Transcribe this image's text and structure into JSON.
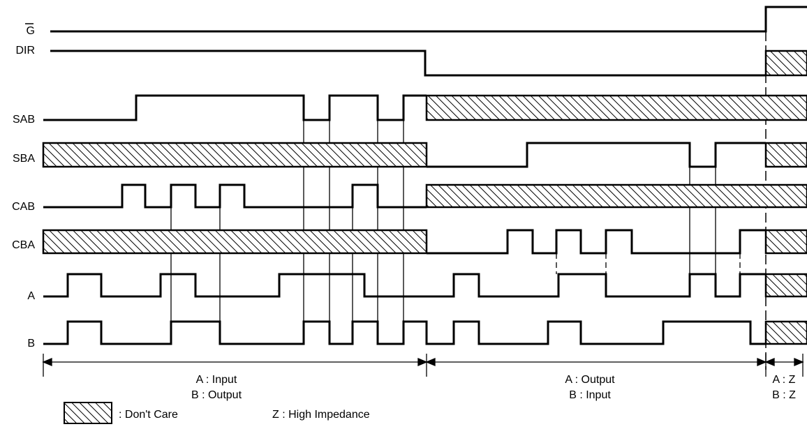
{
  "signals": [
    {
      "label": "G"
    },
    {
      "label": "DIR"
    },
    {
      "label": "SAB"
    },
    {
      "label": "SBA"
    },
    {
      "label": "CAB"
    },
    {
      "label": "CBA"
    },
    {
      "label": "A"
    },
    {
      "label": "B"
    }
  ],
  "regions": [
    {
      "lines": [
        "A : Input",
        "B : Output"
      ]
    },
    {
      "lines": [
        "A : Output",
        "B : Input"
      ]
    },
    {
      "lines": [
        "A : Z",
        "B : Z"
      ]
    }
  ],
  "legend": {
    "dont_care": ": Don't Care",
    "high_impedance": "Z : High Impedance"
  }
}
